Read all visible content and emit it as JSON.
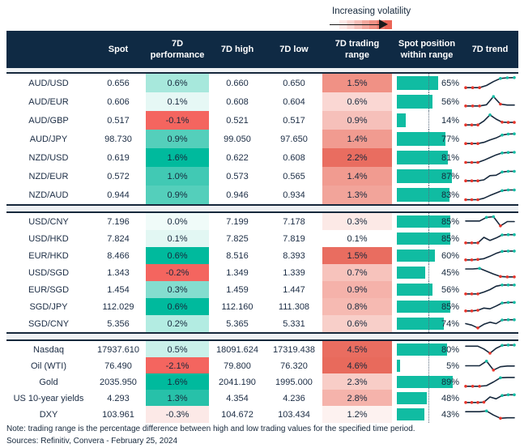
{
  "colors": {
    "header_bg": "#0f2a44",
    "text_navy": "#16283c",
    "bar_teal": "#10bca2",
    "marker_red": "#e8352b",
    "marker_teal": "#14bda5",
    "negative_red": "#f4655f",
    "positive_teal_max": "#00ba9d",
    "separator_band": "#eef1f4"
  },
  "chart_data": {
    "type": "table",
    "volatility_legend": "Increasing volatility",
    "columns": [
      "",
      "Spot",
      "7D performance",
      "7D high",
      "7D low",
      "7D trading range",
      "Spot position within range",
      "7D trend"
    ],
    "groups": [
      {
        "rows": [
          {
            "label": "AUD/USD",
            "spot": "0.656",
            "perf": "0.6%",
            "perf_bg": "#a7e8dc",
            "high": "0.660",
            "low": "0.650",
            "range": "1.5%",
            "range_bg": "#f09185",
            "pos": 65,
            "pos_label": "65%",
            "trend": {
              "y": [
                0.12,
                0.12,
                0.12,
                0.3,
                0.62,
                0.88,
                0.93,
                0.95
              ],
              "m": [
                "r",
                "r",
                "r",
                "",
                "",
                "t",
                "t",
                "t"
              ]
            }
          },
          {
            "label": "AUD/EUR",
            "spot": "0.606",
            "perf": "0.1%",
            "perf_bg": "#e6f8f5",
            "high": "0.608",
            "low": "0.604",
            "range": "0.6%",
            "range_bg": "#fad7d3",
            "pos": 56,
            "pos_label": "56%",
            "trend": {
              "y": [
                0.15,
                0.15,
                0.15,
                0.25,
                0.92,
                0.3,
                0.22,
                0.22
              ],
              "m": [
                "r",
                "r",
                "r",
                "",
                "t",
                "r",
                "",
                ""
              ]
            }
          },
          {
            "label": "AUD/GBP",
            "spot": "0.517",
            "perf": "-0.1%",
            "perf_bg": "#f4655f",
            "high": "0.521",
            "low": "0.517",
            "range": "0.9%",
            "range_bg": "#f6c0ba",
            "pos": 14,
            "pos_label": "14%",
            "trend": {
              "y": [
                0.12,
                0.12,
                0.12,
                0.45,
                0.95,
                0.6,
                0.35,
                0.33,
                0.33
              ],
              "m": [
                "r",
                "r",
                "r",
                "",
                "t",
                "",
                "r",
                "r",
                "r"
              ]
            }
          },
          {
            "label": "AUD/JPY",
            "spot": "98.730",
            "perf": "0.9%",
            "perf_bg": "#54cfbb",
            "high": "99.050",
            "low": "97.650",
            "range": "1.4%",
            "range_bg": "#f19b90",
            "pos": 77,
            "pos_label": "77%",
            "trend": {
              "y": [
                0.12,
                0.12,
                0.12,
                0.22,
                0.42,
                0.58,
                0.82,
                0.9,
                0.92
              ],
              "m": [
                "r",
                "r",
                "r",
                "",
                "",
                "",
                "t",
                "t",
                "t"
              ]
            }
          },
          {
            "label": "NZD/USD",
            "spot": "0.619",
            "perf": "1.6%",
            "perf_bg": "#00ba9d",
            "high": "0.622",
            "low": "0.608",
            "range": "2.2%",
            "range_bg": "#e96d60",
            "pos": 81,
            "pos_label": "81%",
            "trend": {
              "y": [
                0.1,
                0.1,
                0.1,
                0.28,
                0.5,
                0.72,
                0.88,
                0.92,
                0.93
              ],
              "m": [
                "r",
                "r",
                "r",
                "",
                "",
                "",
                "t",
                "t",
                "t"
              ]
            }
          },
          {
            "label": "NZD/EUR",
            "spot": "0.572",
            "perf": "1.0%",
            "perf_bg": "#41c9b4",
            "high": "0.573",
            "low": "0.565",
            "range": "1.4%",
            "range_bg": "#f19b90",
            "pos": 87,
            "pos_label": "87%",
            "trend": {
              "y": [
                0.12,
                0.12,
                0.12,
                0.2,
                0.55,
                0.58,
                0.85,
                0.9,
                0.9
              ],
              "m": [
                "r",
                "r",
                "r",
                "",
                "",
                "",
                "t",
                "t",
                "t"
              ]
            }
          },
          {
            "label": "NZD/AUD",
            "spot": "0.944",
            "perf": "0.9%",
            "perf_bg": "#54cfbb",
            "high": "0.946",
            "low": "0.934",
            "range": "1.3%",
            "range_bg": "#f2a49a",
            "pos": 83,
            "pos_label": "83%",
            "trend": {
              "y": [
                0.1,
                0.1,
                0.1,
                0.22,
                0.45,
                0.65,
                0.85,
                0.9,
                0.9
              ],
              "m": [
                "r",
                "r",
                "r",
                "",
                "",
                "",
                "t",
                "t",
                "t"
              ]
            }
          }
        ]
      },
      {
        "rows": [
          {
            "label": "USD/CNY",
            "spot": "7.196",
            "perf": "0.0%",
            "perf_bg": "#f0fbf9",
            "high": "7.199",
            "low": "7.178",
            "range": "0.3%",
            "range_bg": "#fce9e6",
            "pos": 85,
            "pos_label": "85%",
            "trend": {
              "y": [
                0.55,
                0.55,
                0.55,
                0.85,
                0.9,
                0.15,
                0.5,
                0.5
              ],
              "m": [
                "",
                "",
                "",
                "t",
                "t",
                "r",
                "",
                ""
              ]
            }
          },
          {
            "label": "USD/HKD",
            "spot": "7.824",
            "perf": "0.1%",
            "perf_bg": "#e2f7f3",
            "high": "7.825",
            "low": "7.819",
            "range": "0.1%",
            "range_bg": "#ffffff",
            "pos": 85,
            "pos_label": "85%",
            "trend": {
              "y": [
                0.15,
                0.15,
                0.15,
                0.6,
                0.35,
                0.55,
                0.8,
                0.82,
                0.82
              ],
              "m": [
                "r",
                "r",
                "r",
                "",
                "",
                "",
                "t",
                "t",
                "t"
              ]
            }
          },
          {
            "label": "EUR/HKD",
            "spot": "8.466",
            "perf": "0.6%",
            "perf_bg": "#00ba9d",
            "high": "8.516",
            "low": "8.393",
            "range": "1.5%",
            "range_bg": "#e96d60",
            "pos": 60,
            "pos_label": "60%",
            "trend": {
              "y": [
                0.15,
                0.15,
                0.18,
                0.25,
                0.45,
                0.68,
                0.85,
                0.87,
                0.87
              ],
              "m": [
                "r",
                "r",
                "r",
                "",
                "",
                "",
                "t",
                "t",
                "t"
              ]
            }
          },
          {
            "label": "USD/SGD",
            "spot": "1.343",
            "perf": "-0.2%",
            "perf_bg": "#f4655f",
            "high": "1.349",
            "low": "1.339",
            "range": "0.7%",
            "range_bg": "#f7c3bc",
            "pos": 45,
            "pos_label": "45%",
            "trend": {
              "y": [
                0.8,
                0.8,
                0.85,
                0.62,
                0.38,
                0.18,
                0.15,
                0.15
              ],
              "m": [
                "",
                "",
                "t",
                "",
                "",
                "r",
                "r",
                "r"
              ]
            }
          },
          {
            "label": "EUR/SGD",
            "spot": "1.454",
            "perf": "0.3%",
            "perf_bg": "#84ddcf",
            "high": "1.459",
            "low": "1.447",
            "range": "0.9%",
            "range_bg": "#f5b2aa",
            "pos": 56,
            "pos_label": "56%",
            "trend": {
              "y": [
                0.15,
                0.15,
                0.15,
                0.3,
                0.5,
                0.78,
                0.88,
                0.88,
                0.88
              ],
              "m": [
                "r",
                "r",
                "r",
                "",
                "",
                "",
                "t",
                "t",
                "t"
              ]
            }
          },
          {
            "label": "SGD/JPY",
            "spot": "112.029",
            "perf": "0.6%",
            "perf_bg": "#00ba9d",
            "high": "112.160",
            "low": "111.308",
            "range": "0.8%",
            "range_bg": "#f6bab2",
            "pos": 85,
            "pos_label": "85%",
            "trend": {
              "y": [
                0.15,
                0.15,
                0.2,
                0.38,
                0.32,
                0.55,
                0.8,
                0.85,
                0.85
              ],
              "m": [
                "r",
                "r",
                "r",
                "",
                "",
                "",
                "t",
                "t",
                "t"
              ]
            }
          },
          {
            "label": "SGD/CNY",
            "spot": "5.356",
            "perf": "0.2%",
            "perf_bg": "#b3ece2",
            "high": "5.365",
            "low": "5.331",
            "range": "0.6%",
            "range_bg": "#f8cfc9",
            "pos": 74,
            "pos_label": "74%",
            "trend": {
              "y": [
                0.5,
                0.38,
                0.15,
                0.45,
                0.62,
                0.5,
                0.8,
                0.82,
                0.82
              ],
              "m": [
                "",
                "",
                "r",
                "",
                "",
                "",
                "t",
                "t",
                "t"
              ]
            }
          }
        ]
      },
      {
        "rows": [
          {
            "label": "Nasdaq",
            "spot": "17937.610",
            "perf": "0.5%",
            "perf_bg": "#c9f1ea",
            "high": "18091.624",
            "low": "17319.438",
            "range": "4.5%",
            "range_bg": "#e96d60",
            "pos": 80,
            "pos_label": "80%",
            "trend": {
              "y": [
                0.78,
                0.78,
                0.78,
                0.55,
                0.2,
                0.6,
                0.85,
                0.87,
                0.87
              ],
              "m": [
                "",
                "",
                "",
                "",
                "r",
                "",
                "t",
                "t",
                "t"
              ]
            }
          },
          {
            "label": "Oil (WTI)",
            "spot": "76.490",
            "perf": "-2.1%",
            "perf_bg": "#f4655f",
            "high": "79.800",
            "low": "76.320",
            "range": "4.6%",
            "range_bg": "#e86a5c",
            "pos": 5,
            "pos_label": "5%",
            "trend": {
              "y": [
                0.5,
                0.5,
                0.5,
                0.88,
                0.15,
                0.42,
                0.48,
                0.48
              ],
              "m": [
                "",
                "",
                "",
                "t",
                "r",
                "",
                "",
                ""
              ]
            }
          },
          {
            "label": "Gold",
            "spot": "2035.950",
            "perf": "1.6%",
            "perf_bg": "#00ba9d",
            "high": "2041.190",
            "low": "1995.000",
            "range": "2.3%",
            "range_bg": "#f8cdc7",
            "pos": 89,
            "pos_label": "89%",
            "trend": {
              "y": [
                0.15,
                0.15,
                0.15,
                0.2,
                0.5,
                0.85,
                0.87,
                0.87
              ],
              "m": [
                "r",
                "r",
                "r",
                "",
                "",
                "t",
                "",
                ""
              ]
            }
          },
          {
            "label": "US 10-year yields",
            "spot": "4.293",
            "perf": "1.3%",
            "perf_bg": "#27c1a9",
            "high": "4.354",
            "low": "4.236",
            "range": "2.8%",
            "range_bg": "#f5b3ab",
            "pos": 48,
            "pos_label": "48%",
            "trend": {
              "y": [
                0.15,
                0.15,
                0.15,
                0.17,
                0.6,
                0.45,
                0.72,
                0.78,
                0.78
              ],
              "m": [
                "r",
                "r",
                "r",
                "r",
                "",
                "",
                "t",
                "t",
                "t"
              ]
            }
          },
          {
            "label": "DXY",
            "spot": "103.961",
            "perf": "-0.3%",
            "perf_bg": "#fce9e7",
            "high": "104.672",
            "low": "103.434",
            "range": "1.2%",
            "range_bg": "#fdf2f0",
            "pos": 43,
            "pos_label": "43%",
            "trend": {
              "y": [
                0.72,
                0.72,
                0.72,
                0.78,
                0.45,
                0.18,
                0.22,
                0.22
              ],
              "m": [
                "",
                "",
                "",
                "t",
                "",
                "r",
                "",
                ""
              ]
            }
          }
        ]
      }
    ],
    "note": "Note: trading range is the percentage difference between high and low trading values for the specified time period.",
    "sources": "Sources: Refinitiv, Convera - February 25, 2024"
  }
}
